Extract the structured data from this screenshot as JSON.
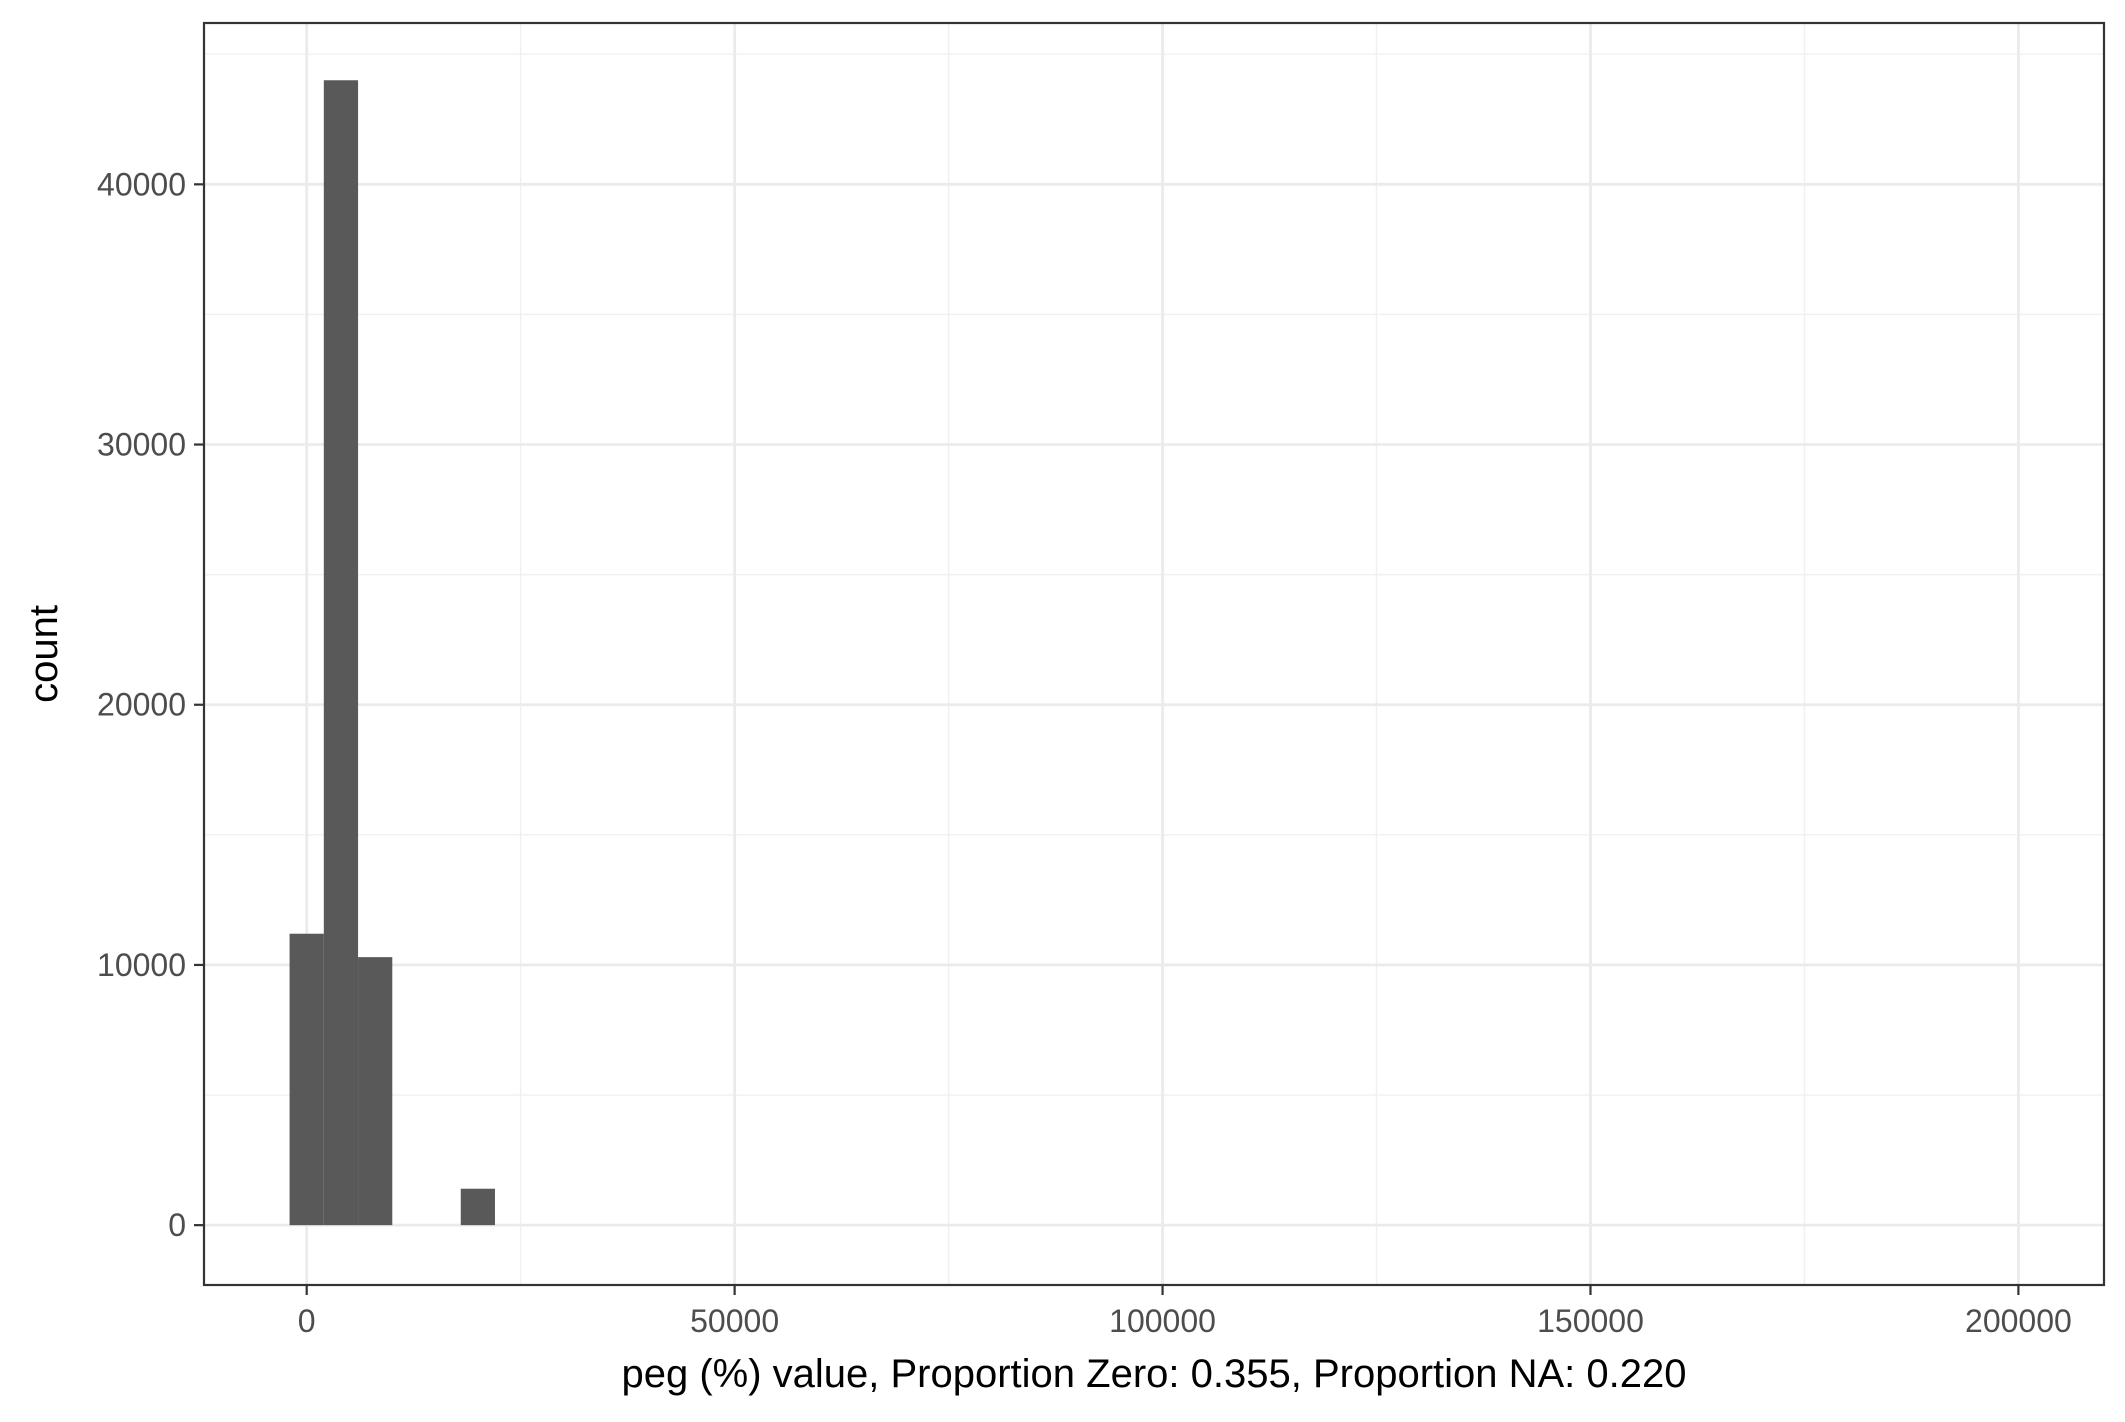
{
  "chart_data": {
    "type": "histogram",
    "title": "",
    "xlabel": "peg (%) value, Proportion Zero: 0.355, Proportion NA: 0.220",
    "ylabel": "count",
    "xlim": [
      -12000,
      210000
    ],
    "ylim": [
      -2300,
      46200
    ],
    "x_ticks": [
      0,
      50000,
      100000,
      150000,
      200000
    ],
    "x_tick_labels": [
      "0",
      "50000",
      "100000",
      "150000",
      "200000"
    ],
    "x_minor_ticks": [
      25000,
      75000,
      125000,
      175000
    ],
    "y_ticks": [
      0,
      10000,
      20000,
      30000,
      40000
    ],
    "y_tick_labels": [
      "0",
      "10000",
      "20000",
      "30000",
      "40000"
    ],
    "y_minor_ticks": [
      5000,
      15000,
      25000,
      35000,
      45000
    ],
    "bin_width": 4000,
    "bins": [
      {
        "x0": -2000,
        "x1": 2000,
        "count": 11200
      },
      {
        "x0": 2000,
        "x1": 6000,
        "count": 44000
      },
      {
        "x0": 6000,
        "x1": 10000,
        "count": 10300
      },
      {
        "x0": 18000,
        "x1": 22000,
        "count": 1400
      }
    ],
    "bar_color": "#595959",
    "grid": true,
    "legend": "none"
  }
}
